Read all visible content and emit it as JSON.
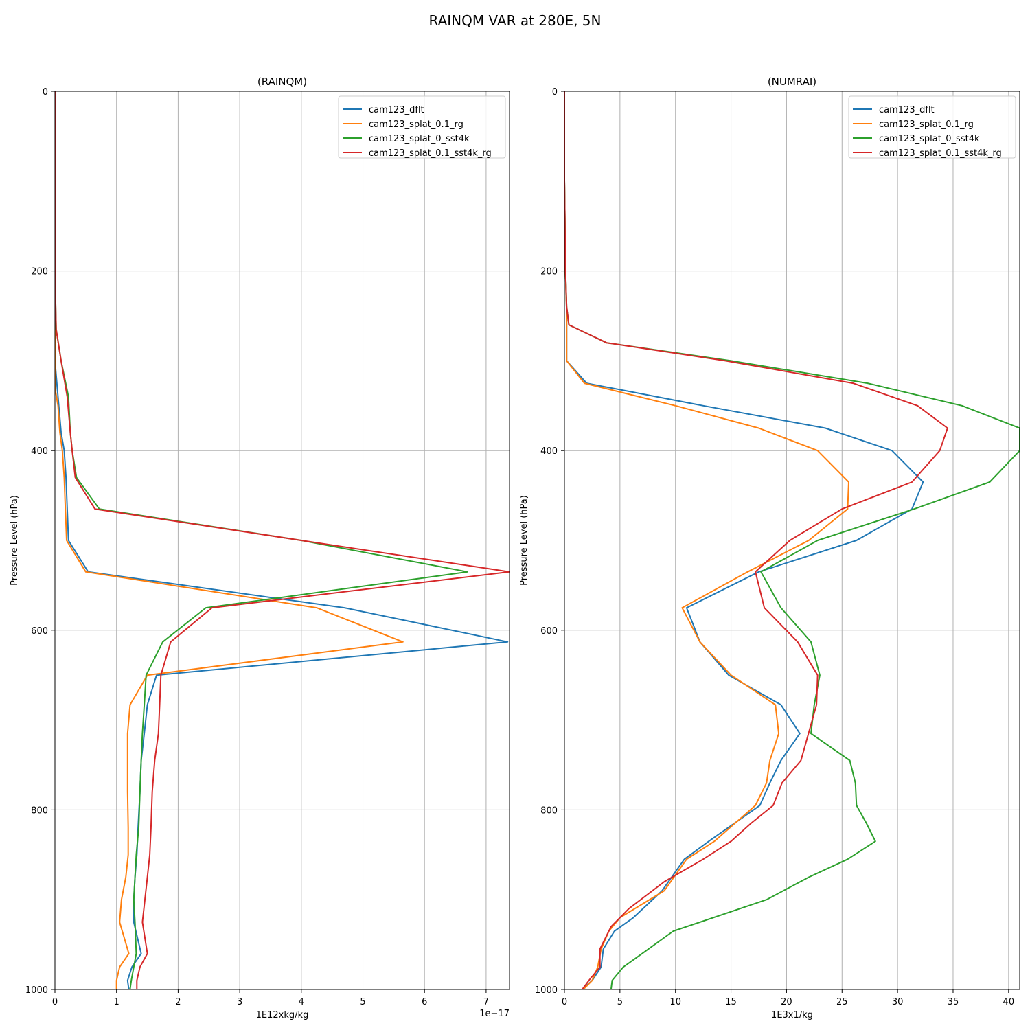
{
  "figure": {
    "suptitle": "RAINQM VAR at 280E, 5N"
  },
  "colors": {
    "cam123_dflt": "#1f77b4",
    "cam123_splat_0.1_rg": "#ff7f0e",
    "cam123_splat_0_sst4k": "#2ca02c",
    "cam123_splat_0.1_sst4k_rg": "#d62728",
    "grid": "#b0b0b0"
  },
  "chart_data": [
    {
      "type": "line",
      "title": "(RAINQM)",
      "xlabel": "1E12xkg/kg",
      "ylabel": "Pressure Level (hPa)",
      "offset_label": "1e−17",
      "xlim": [
        0,
        7.38
      ],
      "ylim": [
        1000,
        0
      ],
      "y_inverted": true,
      "xticks": [
        0,
        1,
        2,
        3,
        4,
        5,
        6,
        7
      ],
      "yticks": [
        0,
        200,
        400,
        600,
        800,
        1000
      ],
      "grid": true,
      "legend_position": "top-right",
      "series": [
        {
          "name": "cam123_dflt",
          "x": [
            0,
            0,
            0,
            0,
            0,
            0.05,
            0.1,
            0.15,
            0.18,
            0.2,
            0.22,
            0.54,
            4.7,
            7.35,
            1.65,
            1.5,
            1.45,
            1.4,
            1.38,
            1.35,
            1.33,
            1.3,
            1.28,
            1.28,
            1.4,
            1.25,
            1.18,
            1.2
          ],
          "y": [
            0,
            100,
            200,
            250,
            300,
            340,
            380,
            400,
            430,
            465,
            500,
            535,
            575,
            613,
            650,
            683,
            715,
            745,
            780,
            820,
            850,
            875,
            900,
            925,
            960,
            975,
            990,
            1000
          ]
        },
        {
          "name": "cam123_splat_0.1_rg",
          "x": [
            0,
            0,
            0,
            0,
            0,
            0.05,
            0.08,
            0.12,
            0.15,
            0.17,
            0.19,
            0.5,
            4.25,
            5.65,
            1.5,
            1.22,
            1.18,
            1.18,
            1.18,
            1.19,
            1.19,
            1.15,
            1.08,
            1.05,
            1.2,
            1.05,
            1.0,
            1.0
          ],
          "y": [
            0,
            100,
            200,
            250,
            330,
            350,
            380,
            400,
            430,
            465,
            500,
            535,
            575,
            613,
            650,
            683,
            715,
            745,
            780,
            820,
            850,
            875,
            900,
            925,
            960,
            975,
            990,
            1000
          ]
        },
        {
          "name": "cam123_splat_0_sst4k",
          "x": [
            0,
            0,
            0,
            0.02,
            0.1,
            0.22,
            0.25,
            0.28,
            0.35,
            0.72,
            4.0,
            6.7,
            2.45,
            1.75,
            1.48,
            1.45,
            1.42,
            1.4,
            1.38,
            1.36,
            1.32,
            1.3,
            1.28,
            1.3,
            1.32,
            1.28,
            1.24,
            1.22
          ],
          "y": [
            0,
            100,
            200,
            265,
            300,
            340,
            380,
            400,
            430,
            465,
            500,
            535,
            575,
            613,
            650,
            683,
            715,
            745,
            780,
            820,
            850,
            875,
            900,
            925,
            960,
            975,
            990,
            1000
          ]
        },
        {
          "name": "cam123_splat_0.1_sst4k_rg",
          "x": [
            0,
            0,
            0,
            0.02,
            0.1,
            0.2,
            0.25,
            0.28,
            0.33,
            0.65,
            4.0,
            7.38,
            2.55,
            1.88,
            1.72,
            1.7,
            1.68,
            1.62,
            1.58,
            1.56,
            1.54,
            1.5,
            1.46,
            1.42,
            1.5,
            1.38,
            1.33,
            1.33
          ],
          "y": [
            0,
            100,
            200,
            265,
            300,
            340,
            380,
            400,
            430,
            465,
            500,
            535,
            575,
            613,
            650,
            683,
            715,
            745,
            780,
            820,
            850,
            875,
            900,
            925,
            960,
            975,
            990,
            1000
          ]
        }
      ]
    },
    {
      "type": "line",
      "title": "(NUMRAI)",
      "xlabel": "1E3x1/kg",
      "ylabel": "Pressure Level (hPa)",
      "xlim": [
        0,
        41
      ],
      "ylim": [
        1000,
        0
      ],
      "y_inverted": true,
      "xticks": [
        0,
        5,
        10,
        15,
        20,
        25,
        30,
        35,
        40
      ],
      "yticks": [
        0,
        200,
        400,
        600,
        800,
        1000
      ],
      "grid": true,
      "legend_position": "top-right",
      "series": [
        {
          "name": "cam123_dflt",
          "x": [
            0,
            0,
            0.1,
            0.15,
            0.2,
            0.2,
            2,
            12.5,
            23.5,
            29.5,
            32.3,
            31.3,
            26.3,
            17.5,
            11,
            12.2,
            14.8,
            19.5,
            21.2,
            19.5,
            18.5,
            17.6,
            13,
            10.8,
            8.8,
            6.2,
            4.5,
            3.5,
            3.3,
            2.5,
            1.6,
            1.4
          ],
          "y": [
            0,
            100,
            200,
            225,
            245,
            300,
            325,
            350,
            375,
            400,
            435,
            465,
            500,
            535,
            575,
            613,
            650,
            683,
            715,
            745,
            770,
            795,
            835,
            855,
            890,
            920,
            935,
            955,
            975,
            990,
            1000,
            1000
          ]
        },
        {
          "name": "cam123_splat_0.1_rg",
          "x": [
            0,
            0,
            0.1,
            0.15,
            0.2,
            0.2,
            1.8,
            10,
            17.5,
            22.8,
            25.6,
            25.5,
            22,
            16.5,
            10.6,
            12.2,
            15,
            19,
            19.3,
            18.5,
            18.2,
            17.2,
            13.5,
            11,
            9,
            5,
            4,
            3.3,
            3,
            2.5,
            1.7,
            1.2
          ],
          "y": [
            0,
            100,
            200,
            225,
            245,
            300,
            325,
            350,
            375,
            400,
            435,
            465,
            500,
            535,
            575,
            613,
            650,
            683,
            715,
            745,
            770,
            795,
            835,
            855,
            890,
            920,
            935,
            955,
            975,
            990,
            1000,
            1000
          ]
        },
        {
          "name": "cam123_splat_0_sst4k",
          "x": [
            0,
            0,
            0.1,
            0.2,
            0.4,
            3.8,
            15,
            27.3,
            35.8,
            41,
            41,
            38.3,
            31.5,
            22.8,
            17.7,
            19.5,
            22.2,
            23,
            22.5,
            22.2,
            25.7,
            26.2,
            26.3,
            27.2,
            28,
            25.5,
            22,
            18.2,
            9.8,
            7,
            5.3,
            4.3,
            4.2,
            3,
            2
          ],
          "y": [
            0,
            100,
            200,
            240,
            260,
            280,
            300,
            325,
            350,
            375,
            400,
            435,
            465,
            500,
            535,
            575,
            613,
            650,
            683,
            715,
            745,
            770,
            795,
            815,
            835,
            855,
            875,
            900,
            935,
            960,
            975,
            990,
            1000,
            1000,
            1000
          ]
        },
        {
          "name": "cam123_splat_0.1_sst4k_rg",
          "x": [
            0,
            0,
            0.1,
            0.2,
            0.4,
            3.8,
            14.5,
            26,
            31.8,
            34.5,
            33.8,
            31.3,
            25,
            20.3,
            17.2,
            18,
            21,
            22.8,
            22.7,
            21.3,
            19.6,
            18.8,
            16.8,
            15,
            12.5,
            9,
            5.8,
            4.2,
            3.2,
            3.2,
            2.2,
            1.6,
            1.5
          ],
          "y": [
            0,
            100,
            200,
            240,
            260,
            280,
            300,
            325,
            350,
            375,
            400,
            435,
            465,
            500,
            535,
            575,
            613,
            650,
            683,
            745,
            770,
            795,
            815,
            835,
            855,
            880,
            910,
            930,
            955,
            975,
            990,
            1000,
            1000
          ]
        }
      ]
    }
  ]
}
